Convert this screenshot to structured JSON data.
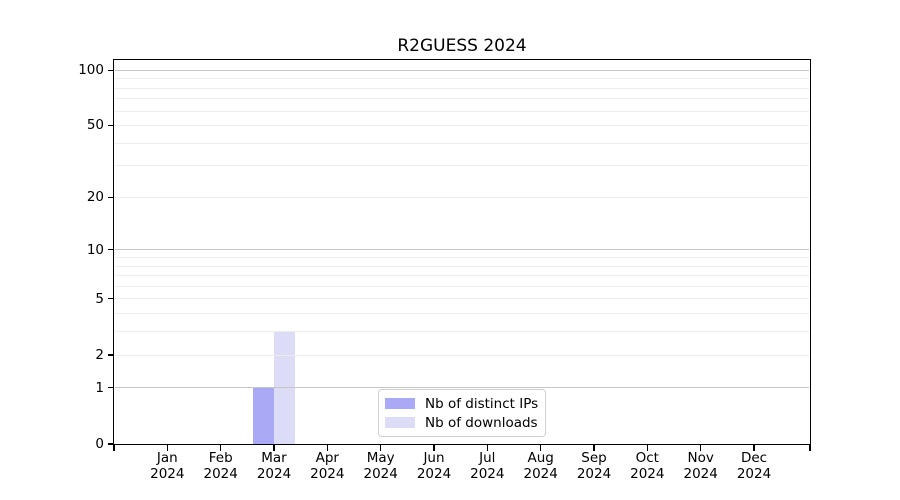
{
  "chart_data": {
    "type": "bar",
    "title": "R2GUESS 2024",
    "categories": [
      "Jan 2024",
      "Feb 2024",
      "Mar 2024",
      "Apr 2024",
      "May 2024",
      "Jun 2024",
      "Jul 2024",
      "Aug 2024",
      "Sep 2024",
      "Oct 2024",
      "Nov 2024",
      "Dec 2024"
    ],
    "series": [
      {
        "name": "Nb of distinct IPs",
        "color": "#a9a9f5",
        "values": [
          0,
          0,
          1,
          0,
          0,
          0,
          0,
          0,
          0,
          0,
          0,
          0
        ]
      },
      {
        "name": "Nb of downloads",
        "color": "#dcdcf7",
        "values": [
          0,
          0,
          3,
          0,
          0,
          0,
          0,
          0,
          0,
          0,
          0,
          0
        ]
      }
    ],
    "y_axis": {
      "scale": "log1p",
      "ticks_labeled": [
        0,
        1,
        2,
        5,
        10,
        20,
        50,
        100
      ],
      "major_grid": [
        1,
        10,
        100
      ],
      "minor_grid": [
        2,
        3,
        4,
        5,
        6,
        7,
        8,
        9,
        20,
        30,
        40,
        50,
        60,
        70,
        80,
        90
      ],
      "ylim": [
        0,
        113.6
      ]
    },
    "x_axis": {
      "tick_label_lines": 2
    },
    "legend": {
      "position": "inside-bottom-center",
      "border_color": "#cfcfcf"
    },
    "grid": "horizontal",
    "colors": {
      "major_grid": "#c6c6c6",
      "minor_grid": "#ececec",
      "spine": "#000000",
      "background": "#ffffff"
    }
  }
}
